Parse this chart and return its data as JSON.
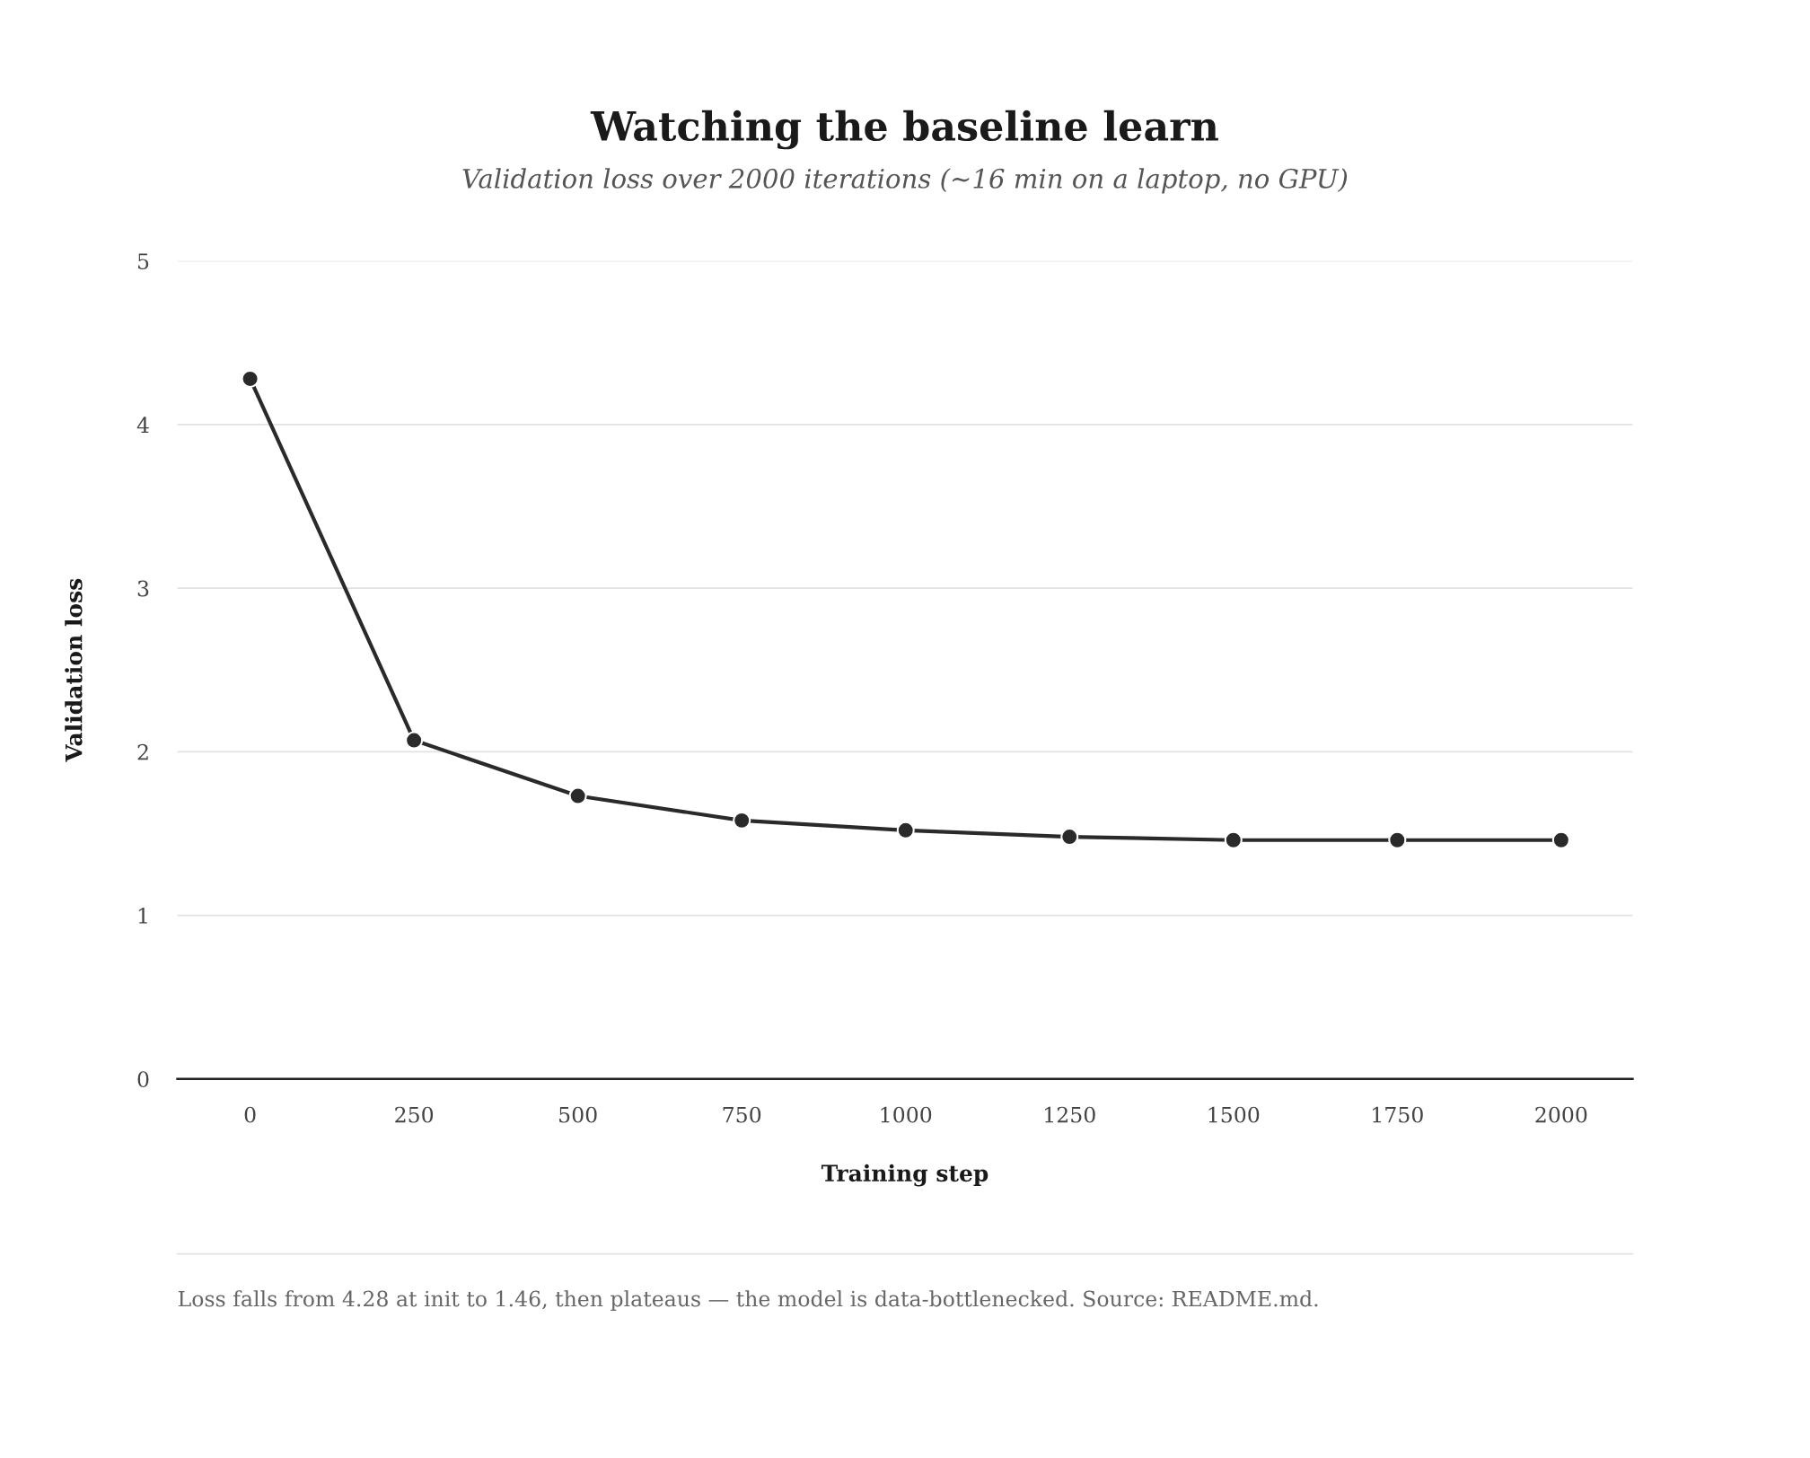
{
  "chart_data": {
    "type": "line",
    "title": "Watching the baseline learn",
    "subtitle": "Validation loss over 2000 iterations (∼16 min on a laptop, no GPU)",
    "xlabel": "Training step",
    "ylabel": "Validation loss",
    "x": [
      0,
      250,
      500,
      750,
      1000,
      1250,
      1500,
      1750,
      2000
    ],
    "series": [
      {
        "color": "#2a2a2a",
        "values": [
          4.28,
          2.07,
          1.73,
          1.58,
          1.52,
          1.48,
          1.46,
          1.46,
          1.46
        ]
      }
    ],
    "xlim": [
      -111,
      2109
    ],
    "xticks": [
      0,
      250,
      500,
      750,
      1000,
      1250,
      1500,
      1750,
      2000
    ],
    "ylim": [
      0,
      5
    ],
    "yticks": [
      0,
      1,
      2,
      3,
      4,
      5
    ],
    "grid": "y",
    "marker": "circle",
    "line_style": "solid",
    "annotations": [
      "Loss falls from 4.28 at init to 1.46, then plateaus — the model is data-bottlenecked. Source: README.md."
    ]
  }
}
